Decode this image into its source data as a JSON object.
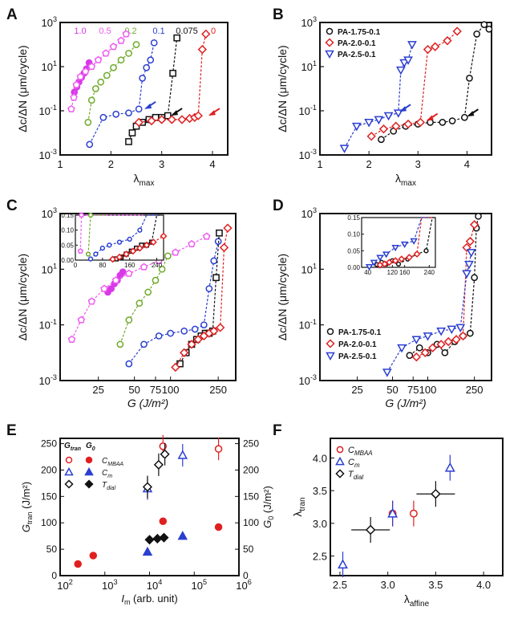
{
  "figure": {
    "colors": {
      "c1_0": "#d838e8",
      "c0_5": "#ee5cf0",
      "c0_2": "#6faa2a",
      "c0_1": "#2b3fd0",
      "c0_075": "#111111",
      "c0": "#e02020",
      "black": "#111111",
      "red": "#e02020",
      "blue": "#2b3fd0",
      "purple_fill": "#8b3cd8"
    }
  },
  "chart_data": [
    {
      "panel": "A",
      "type": "scatter",
      "xlabel": "λmax",
      "ylabel": "Δc/ΔN (μm/cycle)",
      "xscale": "linear",
      "yscale": "log",
      "xlim": [
        1,
        4.3
      ],
      "ylim": [
        0.001,
        1000
      ],
      "xticks": [
        "1",
        "2",
        "3",
        "4"
      ],
      "yticks": [
        "10^-3",
        "10^-1",
        "10^1",
        "10^3"
      ],
      "legend_labels": [
        "1.0",
        "0.5",
        "0.2",
        "0.1",
        "0.075",
        "0"
      ],
      "series": [
        {
          "name": "1.0",
          "x": [
            1.28,
            1.33,
            1.37,
            1.42,
            1.47,
            1.52,
            1.57
          ],
          "y": [
            0.7,
            1.2,
            2.0,
            3.2,
            5.0,
            8.0,
            15
          ]
        },
        {
          "name": "0.5",
          "x": [
            1.22,
            1.27,
            1.32,
            1.4,
            1.5,
            1.62,
            1.75,
            1.9,
            2.05,
            2.2,
            2.3
          ],
          "y": [
            0.12,
            0.4,
            1.5,
            3.5,
            6,
            10,
            20,
            40,
            80,
            150,
            300
          ]
        },
        {
          "name": "0.2",
          "x": [
            1.55,
            1.62,
            1.7,
            1.8,
            1.92,
            2.05,
            2.2,
            2.35,
            2.5
          ],
          "y": [
            0.03,
            0.3,
            1.0,
            2.0,
            4.0,
            9.0,
            20,
            40,
            100
          ]
        },
        {
          "name": "0.1",
          "x": [
            1.58,
            1.85,
            2.1,
            2.35,
            2.55,
            2.62,
            2.7,
            2.78,
            2.85
          ],
          "y": [
            0.003,
            0.05,
            0.07,
            0.08,
            0.12,
            3,
            9,
            20,
            120
          ]
        },
        {
          "name": "0.075",
          "x": [
            2.35,
            2.42,
            2.5,
            2.62,
            2.75,
            2.88,
            3.0,
            3.12,
            3.22,
            3.3
          ],
          "y": [
            0.004,
            0.01,
            0.02,
            0.03,
            0.04,
            0.05,
            0.05,
            0.06,
            5,
            200
          ]
        },
        {
          "name": "0",
          "x": [
            2.55,
            2.8,
            3.0,
            3.2,
            3.4,
            3.55,
            3.65,
            3.72,
            3.8,
            3.87
          ],
          "y": [
            0.03,
            0.035,
            0.04,
            0.04,
            0.04,
            0.045,
            0.05,
            0.06,
            60,
            300
          ]
        }
      ]
    },
    {
      "panel": "B",
      "type": "scatter",
      "xlabel": "λmax",
      "ylabel": "Δc/ΔN (μm/cycle)",
      "xscale": "linear",
      "yscale": "log",
      "xlim": [
        1,
        4.5
      ],
      "ylim": [
        0.001,
        1000
      ],
      "xticks": [
        "1",
        "2",
        "3",
        "4"
      ],
      "yticks": [
        "10^-3",
        "10^-1",
        "10^1",
        "10^3"
      ],
      "legend": [
        "PA-1.75-0.1",
        "PA-2.0-0.1",
        "PA-2.5-0.1"
      ],
      "legend_position": "top-left",
      "series": [
        {
          "name": "PA-1.75-0.1",
          "x": [
            2.25,
            2.5,
            2.75,
            3.0,
            3.25,
            3.5,
            3.7,
            3.95,
            4.05,
            4.2,
            4.35,
            4.45
          ],
          "y": [
            0.005,
            0.012,
            0.02,
            0.025,
            0.03,
            0.03,
            0.035,
            0.05,
            3,
            300,
            800,
            500
          ]
        },
        {
          "name": "PA-2.0-0.1",
          "x": [
            2.05,
            2.3,
            2.55,
            2.8,
            3.05,
            3.2,
            3.35,
            3.6,
            3.8
          ],
          "y": [
            0.007,
            0.015,
            0.02,
            0.025,
            0.03,
            60,
            80,
            150,
            400
          ]
        },
        {
          "name": "PA-2.5-0.1",
          "x": [
            1.5,
            1.75,
            2.0,
            2.2,
            2.4,
            2.6,
            2.65,
            2.72,
            2.8,
            2.88
          ],
          "y": [
            0.002,
            0.02,
            0.03,
            0.04,
            0.06,
            0.08,
            7,
            15,
            20,
            100
          ]
        }
      ]
    },
    {
      "panel": "C",
      "type": "scatter",
      "xlabel": "G (J/m²)",
      "ylabel": "Δc/ΔN (μm/cycle)",
      "xscale": "log",
      "yscale": "log",
      "xlim": [
        12,
        350
      ],
      "ylim": [
        0.001,
        1000
      ],
      "xticks": [
        "25",
        "50",
        "75",
        "100",
        "250"
      ],
      "yticks": [
        "10^-3",
        "10^-1",
        "10^1",
        "10^3"
      ],
      "series": [
        {
          "name": "1.0",
          "x": [
            30,
            32,
            34,
            36,
            38,
            40
          ],
          "y": [
            1.5,
            2,
            3,
            4,
            6,
            8
          ]
        },
        {
          "name": "0.5",
          "x": [
            15,
            18,
            22,
            28,
            35,
            45,
            60,
            80,
            110,
            150,
            200
          ],
          "y": [
            0.03,
            0.15,
            0.7,
            2,
            4,
            7,
            12,
            20,
            40,
            80,
            150
          ]
        },
        {
          "name": "0.2",
          "x": [
            38,
            45,
            55,
            65,
            75,
            85,
            95
          ],
          "y": [
            0.02,
            0.15,
            0.6,
            1.5,
            4,
            10,
            30
          ]
        },
        {
          "name": "0.1",
          "x": [
            45,
            60,
            80,
            100,
            130,
            160,
            190,
            210,
            230,
            250
          ],
          "y": [
            0.004,
            0.02,
            0.04,
            0.05,
            0.06,
            0.07,
            0.1,
            2,
            20,
            100
          ]
        },
        {
          "name": "0.075",
          "x": [
            120,
            135,
            150,
            165,
            180,
            195,
            210,
            225,
            240,
            255
          ],
          "y": [
            0.004,
            0.01,
            0.02,
            0.03,
            0.04,
            0.05,
            0.05,
            0.06,
            5,
            200
          ]
        },
        {
          "name": "0",
          "x": [
            110,
            130,
            150,
            170,
            190,
            210,
            230,
            260,
            280,
            300
          ],
          "y": [
            0.003,
            0.01,
            0.02,
            0.03,
            0.04,
            0.05,
            0.06,
            0.08,
            60,
            300
          ]
        }
      ]
    },
    {
      "panel": "D",
      "type": "scatter",
      "xlabel": "G (J/m²)",
      "ylabel": "Δc/ΔN (μm/cycle)",
      "xscale": "log",
      "yscale": "log",
      "xlim": [
        12,
        350
      ],
      "ylim": [
        0.001,
        1000
      ],
      "xticks": [
        "25",
        "50",
        "75",
        "100",
        "250"
      ],
      "yticks": [
        "10^-3",
        "10^-1",
        "10^1",
        "10^3"
      ],
      "legend": [
        "PA-1.75-0.1",
        "PA-2.0-0.1",
        "PA-2.5-0.1"
      ],
      "legend_position": "bottom-left",
      "series": [
        {
          "name": "PA-1.75-0.1",
          "x": [
            70,
            85,
            100,
            120,
            140,
            170,
            200,
            230,
            250,
            260,
            270
          ],
          "y": [
            0.008,
            0.015,
            0.01,
            0.02,
            0.01,
            0.025,
            0.04,
            0.05,
            5,
            300,
            800
          ]
        },
        {
          "name": "PA-2.0-0.1",
          "x": [
            80,
            95,
            110,
            130,
            150,
            175,
            200,
            215,
            230,
            250
          ],
          "y": [
            0.007,
            0.01,
            0.015,
            0.02,
            0.025,
            0.03,
            0.04,
            60,
            100,
            400
          ]
        },
        {
          "name": "PA-2.5-0.1",
          "x": [
            45,
            60,
            80,
            100,
            130,
            160,
            190,
            215,
            225,
            235
          ],
          "y": [
            0.002,
            0.015,
            0.03,
            0.04,
            0.06,
            0.07,
            0.08,
            7,
            15,
            40
          ]
        }
      ]
    },
    {
      "panel": "E",
      "type": "scatter",
      "xlabel": "Im (arb. unit)",
      "ylabel": "Gtran (J/m²)",
      "ylabel2": "G0 (J/m²)",
      "xscale": "log",
      "xlim": [
        100,
        1000000
      ],
      "ylim": [
        0,
        260
      ],
      "ylim2": [
        0,
        260
      ],
      "xticks": [
        "10^2",
        "10^3",
        "10^4",
        "10^5",
        "10^6"
      ],
      "yticks": [
        "0",
        "50",
        "100",
        "150",
        "200",
        "250"
      ],
      "legend_header": [
        "Gtran",
        "G0"
      ],
      "legend": [
        "CMBAA",
        "Cm",
        "Tdial"
      ],
      "series": [
        {
          "name": "CMBAA Gtran",
          "x": [
            20000,
            350000
          ],
          "y": [
            245,
            240
          ]
        },
        {
          "name": "Cm Gtran",
          "x": [
            9000,
            55000
          ],
          "y": [
            165,
            228
          ]
        },
        {
          "name": "Tdial Gtran",
          "x": [
            9000,
            16000,
            22000
          ],
          "y": [
            168,
            210,
            230
          ]
        },
        {
          "name": "CMBAA G0",
          "x": [
            250,
            550,
            20000,
            350000
          ],
          "y": [
            22,
            38,
            103,
            92
          ]
        },
        {
          "name": "Cm G0",
          "x": [
            9000,
            55000
          ],
          "y": [
            45,
            75
          ]
        },
        {
          "name": "Tdial G0",
          "x": [
            10000,
            15000,
            21000
          ],
          "y": [
            68,
            70,
            72
          ]
        }
      ]
    },
    {
      "panel": "F",
      "type": "scatter",
      "xlabel": "λaffine",
      "ylabel": "λtran",
      "xlim": [
        2.4,
        4.2
      ],
      "ylim": [
        2.2,
        4.3
      ],
      "xticks": [
        "2.5",
        "3.0",
        "3.5",
        "4.0"
      ],
      "yticks": [
        "2.5",
        "3.0",
        "3.5",
        "4.0"
      ],
      "legend": [
        "CMBAA",
        "Cm",
        "Tdial"
      ],
      "series": [
        {
          "name": "CMBAA",
          "x": [
            3.05,
            3.27
          ],
          "y": [
            3.15,
            3.15
          ]
        },
        {
          "name": "Cm",
          "x": [
            2.53,
            3.05,
            3.65
          ],
          "y": [
            2.37,
            3.15,
            3.85
          ]
        },
        {
          "name": "Tdial",
          "x": [
            2.82,
            3.5
          ],
          "y": [
            2.9,
            3.45
          ]
        }
      ]
    }
  ]
}
